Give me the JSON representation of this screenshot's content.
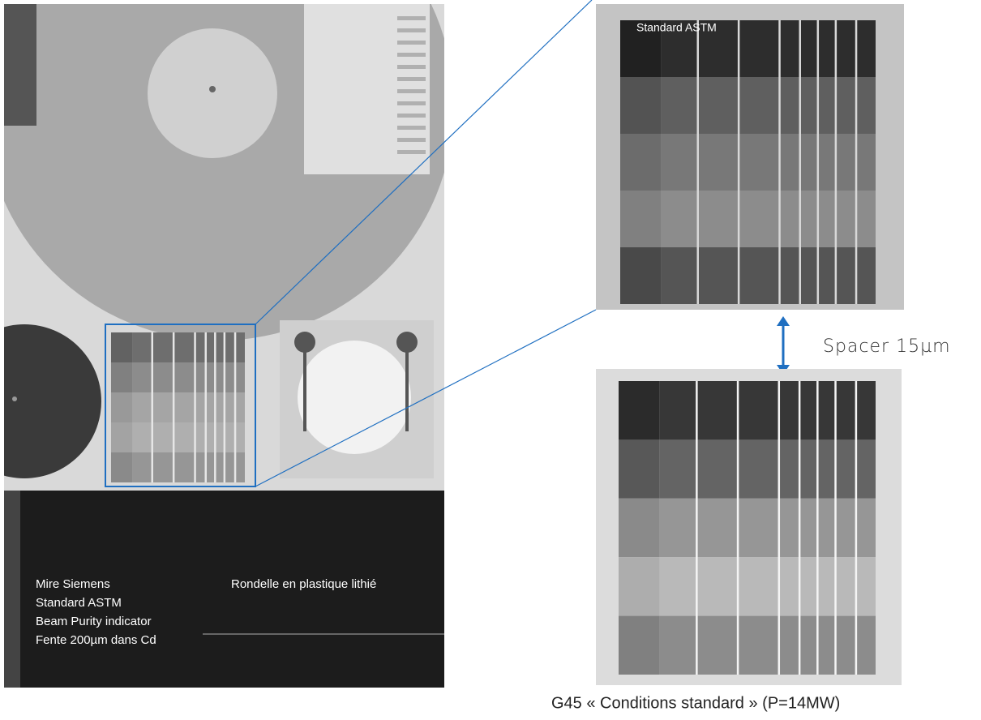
{
  "zoom_image": {
    "label": "Standard ASTM"
  },
  "spacer_label": "Spacer 15µm",
  "legend": {
    "left_items": [
      "Mire Siemens",
      "Standard ASTM",
      "Beam Purity indicator",
      "Fente 200µm dans Cd"
    ],
    "right_item": "Rondelle en plastique lithié"
  },
  "caption": "G45 « Conditions standard » (P=14MW)"
}
